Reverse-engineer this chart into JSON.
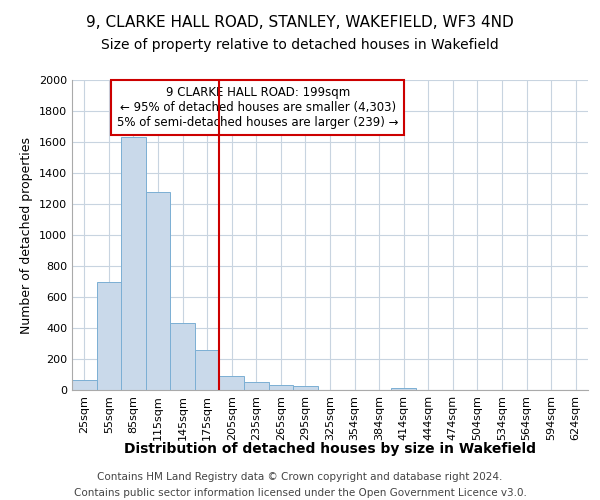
{
  "title_line1": "9, CLARKE HALL ROAD, STANLEY, WAKEFIELD, WF3 4ND",
  "title_line2": "Size of property relative to detached houses in Wakefield",
  "xlabel": "Distribution of detached houses by size in Wakefield",
  "ylabel": "Number of detached properties",
  "footer_line1": "Contains HM Land Registry data © Crown copyright and database right 2024.",
  "footer_line2": "Contains public sector information licensed under the Open Government Licence v3.0.",
  "categories": [
    "25sqm",
    "55sqm",
    "85sqm",
    "115sqm",
    "145sqm",
    "175sqm",
    "205sqm",
    "235sqm",
    "265sqm",
    "295sqm",
    "325sqm",
    "354sqm",
    "384sqm",
    "414sqm",
    "444sqm",
    "474sqm",
    "504sqm",
    "534sqm",
    "564sqm",
    "594sqm",
    "624sqm"
  ],
  "values": [
    65,
    695,
    1635,
    1280,
    435,
    255,
    90,
    50,
    30,
    25,
    0,
    0,
    0,
    15,
    0,
    0,
    0,
    0,
    0,
    0,
    0
  ],
  "bar_color": "#c9d9ea",
  "bar_edgecolor": "#7bafd4",
  "vline_x_index": 6,
  "vline_color": "#cc0000",
  "annotation_text": "9 CLARKE HALL ROAD: 199sqm\n← 95% of detached houses are smaller (4,303)\n5% of semi-detached houses are larger (239) →",
  "annotation_box_color": "#cc0000",
  "ylim": [
    0,
    2000
  ],
  "yticks": [
    0,
    200,
    400,
    600,
    800,
    1000,
    1200,
    1400,
    1600,
    1800,
    2000
  ],
  "grid_color": "#c8d4e0",
  "background_color": "#ffffff",
  "title_fontsize": 11,
  "subtitle_fontsize": 10,
  "xlabel_fontsize": 10,
  "ylabel_fontsize": 9,
  "tick_fontsize": 8,
  "footer_fontsize": 7.5
}
